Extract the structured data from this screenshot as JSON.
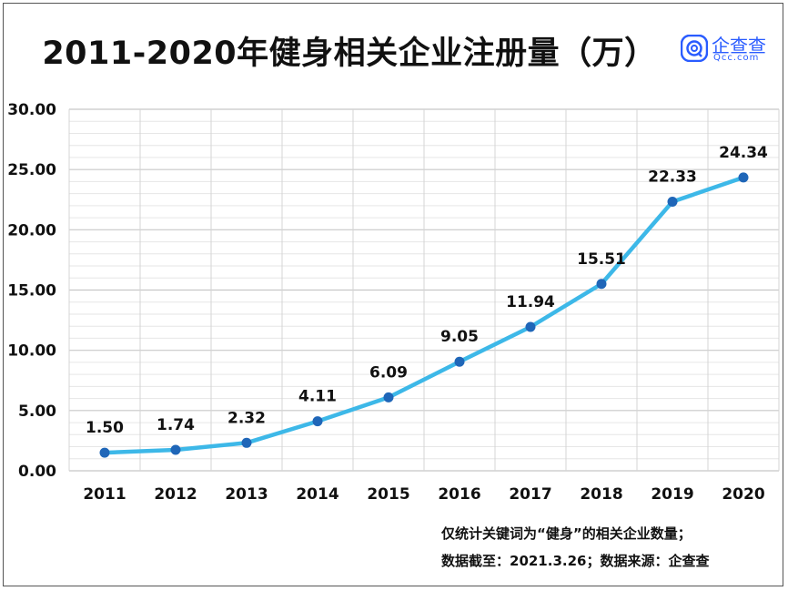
{
  "header": {
    "title": "2011-2020年健身相关企业注册量（万）",
    "logo_name": "企查查",
    "logo_url": "Qcc.com",
    "logo_icon": "qcc-logo-icon",
    "logo_color": "#2a5cff"
  },
  "footnote": {
    "line1": "仅统计关键词为“健身”的相关企业数量；",
    "line2": "数据截至：2021.3.26；数据来源：企查查"
  },
  "chart_data": {
    "type": "line",
    "title": "2011-2020年健身相关企业注册量（万）",
    "xlabel": "",
    "ylabel": "",
    "x": [
      "2011",
      "2012",
      "2013",
      "2014",
      "2015",
      "2016",
      "2017",
      "2018",
      "2019",
      "2020"
    ],
    "series": [
      {
        "values": [
          1.5,
          1.74,
          2.32,
          4.11,
          6.09,
          9.05,
          11.94,
          15.51,
          22.33,
          24.34
        ],
        "labels": [
          "1.50",
          "1.74",
          "2.32",
          "4.11",
          "6.09",
          "9.05",
          "11.94",
          "15.51",
          "22.33",
          "24.34"
        ]
      }
    ],
    "ylim": [
      0,
      30
    ],
    "yticks": [
      "0.00",
      "5.00",
      "10.00",
      "15.00",
      "20.00",
      "25.00",
      "30.00"
    ],
    "grid": true,
    "line_color": "#3db8e8",
    "marker_color": "#1f66b8"
  }
}
